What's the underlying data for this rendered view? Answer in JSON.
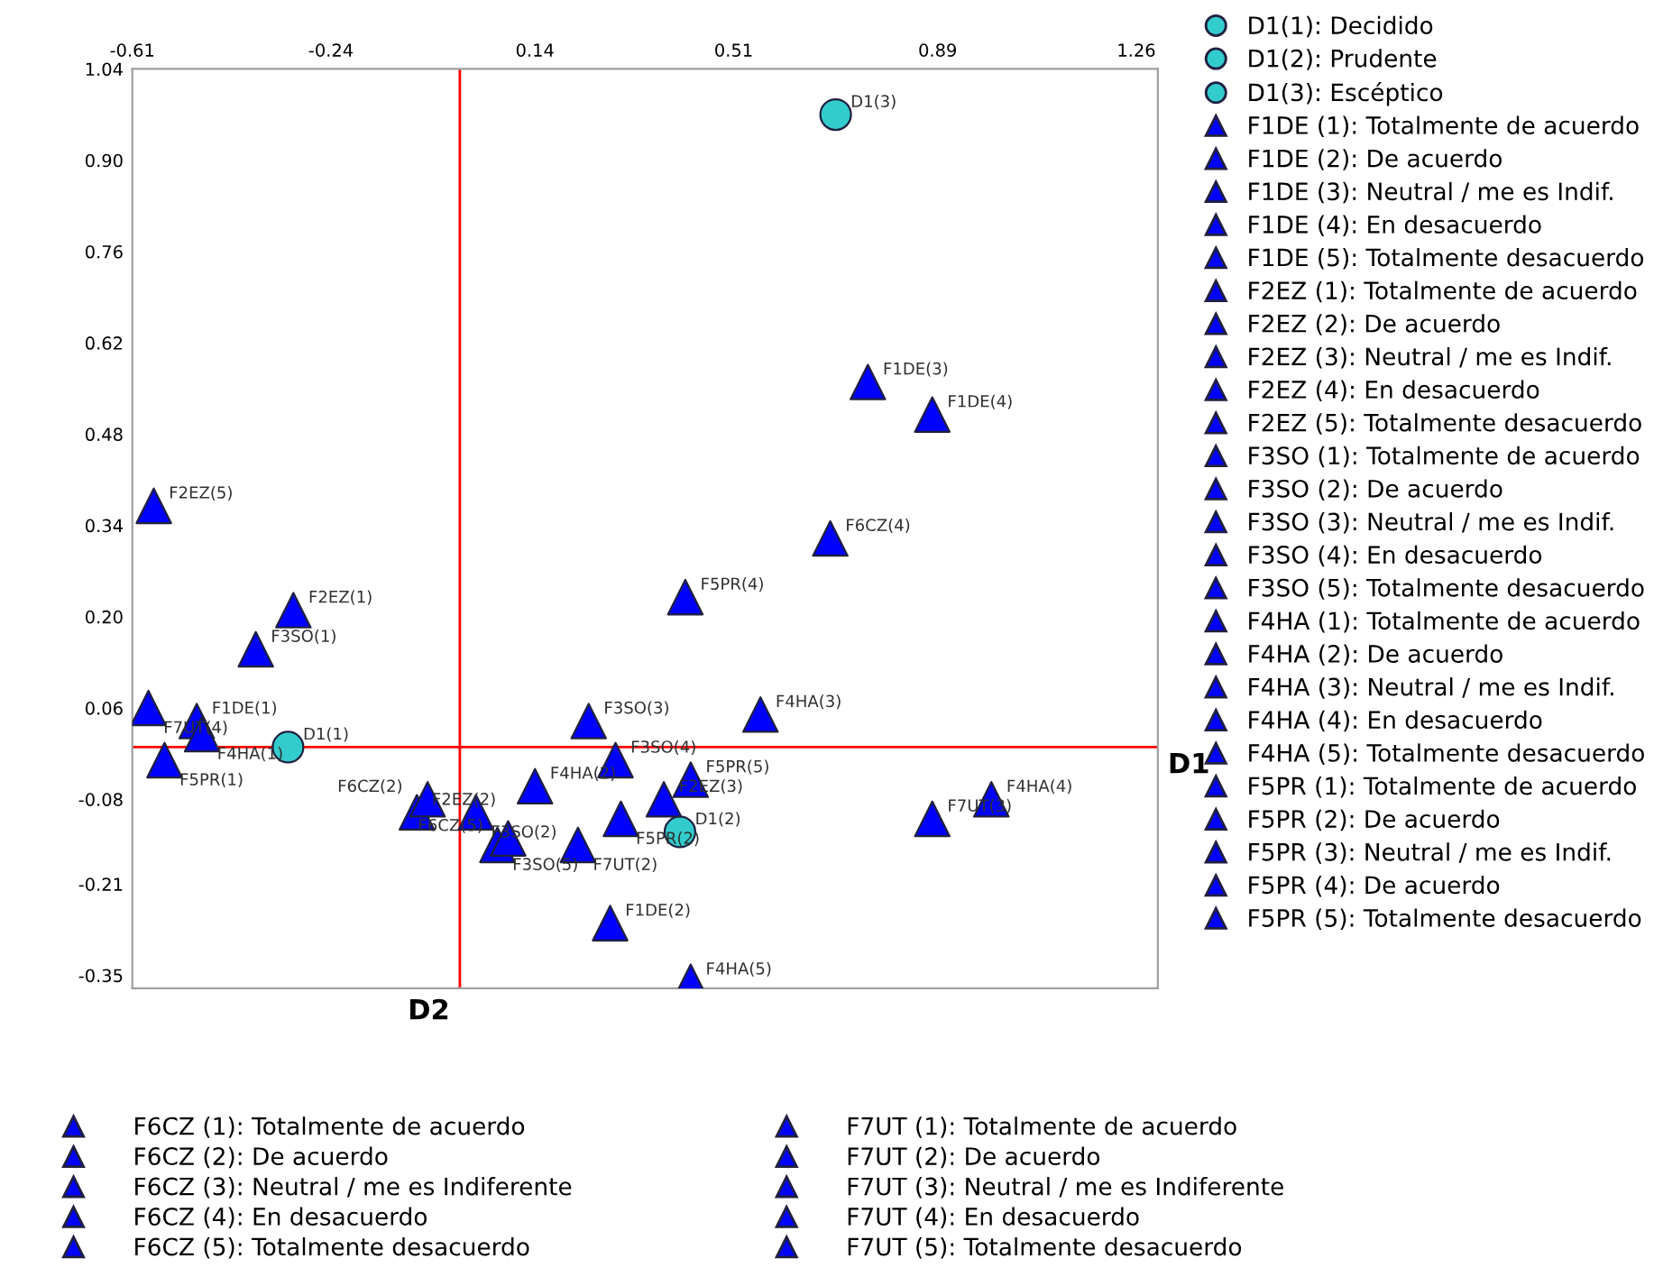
{
  "chart_data": {
    "type": "scatter",
    "xlim": [
      -0.61,
      1.3
    ],
    "ylim": [
      -0.37,
      1.04
    ],
    "xticks": [
      -0.61,
      -0.24,
      0.14,
      0.51,
      0.89,
      1.26
    ],
    "yticks": [
      -0.35,
      -0.21,
      -0.08,
      0.06,
      {
        "value": 0.2,
        "label": "0.20"
      },
      0.34,
      0.48,
      0.62,
      0.76,
      {
        "value": 0.9,
        "label": "0.90"
      },
      1.04
    ],
    "grid": false,
    "legend": "right",
    "ref_lines": [
      {
        "axis": "x",
        "value": 0,
        "label": "D2",
        "color": "#ff0000"
      },
      {
        "axis": "y",
        "value": 0,
        "label": "D1",
        "color": "#ff0000"
      }
    ],
    "series": [
      {
        "name": "D1(1): Decidido",
        "color": "#33cccc",
        "marker": "circle",
        "x": [
          -0.32
        ],
        "values": [
          0.0
        ]
      },
      {
        "name": "D1(2): Prudente",
        "color": "#33cccc",
        "marker": "circle",
        "x": [
          0.41
        ],
        "values": [
          -0.13
        ]
      },
      {
        "name": "D1(3): Escéptico",
        "color": "#33cccc",
        "marker": "circle",
        "x": [
          0.7
        ],
        "values": [
          0.97
        ]
      },
      {
        "name": "F1DE (1): Totalmente de acuerdo",
        "color": "#0000ff",
        "marker": "triangle",
        "x": [
          -0.49
        ],
        "values": [
          0.04
        ]
      },
      {
        "name": "F1DE (2): De acuerdo",
        "color": "#0000ff",
        "marker": "triangle",
        "x": [
          0.28
        ],
        "values": [
          -0.27
        ]
      },
      {
        "name": "F1DE (3): Neutral / me es Indif.",
        "color": "#0000ff",
        "marker": "triangle",
        "x": [
          0.76
        ],
        "values": [
          0.56
        ]
      },
      {
        "name": "F1DE (4): En desacuerdo",
        "color": "#0000ff",
        "marker": "triangle",
        "x": [
          0.88
        ],
        "values": [
          0.51
        ]
      },
      {
        "name": "F1DE (5): Totalmente desacuerdo",
        "color": "#0000ff",
        "marker": "triangle",
        "x": [
          null
        ],
        "values": [
          null
        ]
      },
      {
        "name": "F2EZ (1): Totalmente de acuerdo",
        "color": "#0000ff",
        "marker": "triangle",
        "x": [
          -0.31
        ],
        "values": [
          0.21
        ]
      },
      {
        "name": "F2EZ (2): De acuerdo",
        "color": "#0000ff",
        "marker": "triangle",
        "x": [
          -0.08
        ],
        "values": [
          -0.1
        ]
      },
      {
        "name": "F2EZ (3): Neutral / me es Indif.",
        "color": "#0000ff",
        "marker": "triangle",
        "x": [
          0.38
        ],
        "values": [
          -0.08
        ]
      },
      {
        "name": "F2EZ (4): En desacuerdo",
        "color": "#0000ff",
        "marker": "triangle",
        "x": [
          null
        ],
        "values": [
          null
        ]
      },
      {
        "name": "F2EZ (5): Totalmente desacuerdo",
        "color": "#0000ff",
        "marker": "triangle",
        "x": [
          -0.57
        ],
        "values": [
          0.37
        ]
      },
      {
        "name": "F3SO (1): Totalmente de acuerdo",
        "color": "#0000ff",
        "marker": "triangle",
        "x": [
          -0.38
        ],
        "values": [
          0.15
        ]
      },
      {
        "name": "F3SO (2): De acuerdo",
        "color": "#0000ff",
        "marker": "triangle",
        "x": [
          0.03
        ],
        "values": [
          -0.1
        ]
      },
      {
        "name": "F3SO (3): Neutral / me es Indif.",
        "color": "#0000ff",
        "marker": "triangle",
        "x": [
          0.24
        ],
        "values": [
          0.04
        ]
      },
      {
        "name": "F3SO (4): En desacuerdo",
        "color": "#0000ff",
        "marker": "triangle",
        "x": [
          0.29
        ],
        "values": [
          -0.02
        ]
      },
      {
        "name": "F3SO (5): Totalmente desacuerdo",
        "color": "#0000ff",
        "marker": "triangle",
        "x": [
          0.07
        ],
        "values": [
          -0.15
        ]
      },
      {
        "name": "F4HA (1): Totalmente de acuerdo",
        "color": "#0000ff",
        "marker": "triangle",
        "x": [
          -0.48
        ],
        "values": [
          0.02
        ]
      },
      {
        "name": "F4HA (2): De acuerdo",
        "color": "#0000ff",
        "marker": "triangle",
        "x": [
          0.14
        ],
        "values": [
          -0.06
        ]
      },
      {
        "name": "F4HA (3): Neutral / me es Indif.",
        "color": "#0000ff",
        "marker": "triangle",
        "x": [
          0.56
        ],
        "values": [
          0.05
        ]
      },
      {
        "name": "F4HA (4): En desacuerdo",
        "color": "#0000ff",
        "marker": "triangle",
        "x": [
          0.99
        ],
        "values": [
          -0.08
        ]
      },
      {
        "name": "F4HA (5): Totalmente desacuerdo",
        "color": "#0000ff",
        "marker": "triangle",
        "x": [
          0.43
        ],
        "values": [
          -0.36
        ]
      },
      {
        "name": "F5PR (1): Totalmente de acuerdo",
        "color": "#0000ff",
        "marker": "triangle",
        "x": [
          -0.55
        ],
        "values": [
          -0.02
        ]
      },
      {
        "name": "F5PR (2): De acuerdo",
        "color": "#0000ff",
        "marker": "triangle",
        "x": [
          0.3
        ],
        "values": [
          -0.11
        ]
      },
      {
        "name": "F5PR (3): Neutral / me es Indif.",
        "color": "#0000ff",
        "marker": "triangle",
        "x": [
          null
        ],
        "values": [
          null
        ]
      },
      {
        "name": "F5PR (4): De acuerdo",
        "color": "#0000ff",
        "marker": "triangle",
        "x": [
          0.42
        ],
        "values": [
          0.23
        ]
      },
      {
        "name": "F5PR (5): Totalmente desacuerdo",
        "color": "#0000ff",
        "marker": "triangle",
        "x": [
          0.43
        ],
        "values": [
          -0.05
        ]
      },
      {
        "name": "F6CZ (1): Totalmente de acuerdo",
        "color": "#0000ff",
        "marker": "triangle",
        "x": [
          null
        ],
        "values": [
          null
        ]
      },
      {
        "name": "F6CZ (2): De acuerdo",
        "color": "#0000ff",
        "marker": "triangle",
        "x": [
          -0.06
        ],
        "values": [
          -0.08
        ]
      },
      {
        "name": "F6CZ (3): Neutral / me es Indiferente",
        "color": "#0000ff",
        "marker": "triangle",
        "x": [
          null
        ],
        "values": [
          null
        ]
      },
      {
        "name": "F6CZ (4): En desacuerdo",
        "color": "#0000ff",
        "marker": "triangle",
        "x": [
          0.69
        ],
        "values": [
          0.32
        ]
      },
      {
        "name": "F6CZ (5): Totalmente desacuerdo",
        "color": "#0000ff",
        "marker": "triangle",
        "x": [
          0.09
        ],
        "values": [
          -0.14
        ]
      },
      {
        "name": "F7UT (1): Totalmente de acuerdo",
        "color": "#0000ff",
        "marker": "triangle",
        "x": [
          null
        ],
        "values": [
          null
        ]
      },
      {
        "name": "F7UT (2): De acuerdo",
        "color": "#0000ff",
        "marker": "triangle",
        "x": [
          0.22
        ],
        "values": [
          -0.15
        ]
      },
      {
        "name": "F7UT (3): Neutral / me es Indiferente",
        "color": "#0000ff",
        "marker": "triangle",
        "x": [
          0.88
        ],
        "values": [
          -0.11
        ]
      },
      {
        "name": "F7UT (4): En desacuerdo",
        "color": "#0000ff",
        "marker": "triangle",
        "x": [
          -0.58
        ],
        "values": [
          0.06
        ]
      },
      {
        "name": "F7UT (5): Totalmente desacuerdo",
        "color": "#0000ff",
        "marker": "triangle",
        "x": [
          null
        ],
        "values": [
          null
        ]
      }
    ],
    "annotations": [
      {
        "text": "D1(1)",
        "x": -0.32,
        "y": 0.0
      },
      {
        "text": "D1(2)",
        "x": 0.41,
        "y": -0.13
      },
      {
        "text": "D1(3)",
        "x": 0.7,
        "y": 0.97
      },
      {
        "text": "F1DE(1)",
        "x": -0.49,
        "y": 0.04
      },
      {
        "text": "F1DE(2)",
        "x": 0.28,
        "y": -0.27
      },
      {
        "text": "F1DE(3)",
        "x": 0.76,
        "y": 0.56
      },
      {
        "text": "F1DE(4)",
        "x": 0.88,
        "y": 0.51
      },
      {
        "text": "F2EZ(1)",
        "x": -0.31,
        "y": 0.21
      },
      {
        "text": "F2EZ(2)",
        "x": -0.08,
        "y": -0.1
      },
      {
        "text": "F2EZ(3)",
        "x": 0.38,
        "y": -0.08
      },
      {
        "text": "F2EZ(5)",
        "x": -0.57,
        "y": 0.37
      },
      {
        "text": "F3SO(1)",
        "x": -0.38,
        "y": 0.15
      },
      {
        "text": "F3SO(2)",
        "x": 0.03,
        "y": -0.1
      },
      {
        "text": "F3SO(3)",
        "x": 0.24,
        "y": 0.04
      },
      {
        "text": "F3SO(4)",
        "x": 0.29,
        "y": -0.02
      },
      {
        "text": "F3SO(5)",
        "x": 0.07,
        "y": -0.15
      },
      {
        "text": "F4HA(1)",
        "x": -0.48,
        "y": 0.02
      },
      {
        "text": "F4HA(2)",
        "x": 0.14,
        "y": -0.06
      },
      {
        "text": "F4HA(3)",
        "x": 0.56,
        "y": 0.05
      },
      {
        "text": "F4HA(4)",
        "x": 0.99,
        "y": -0.08
      },
      {
        "text": "F4HA(5)",
        "x": 0.43,
        "y": -0.36
      },
      {
        "text": "F5PR(1)",
        "x": -0.55,
        "y": -0.02
      },
      {
        "text": "F5PR(2)",
        "x": 0.3,
        "y": -0.11
      },
      {
        "text": "F5PR(4)",
        "x": 0.42,
        "y": 0.23
      },
      {
        "text": "F5PR(5)",
        "x": 0.43,
        "y": -0.05
      },
      {
        "text": "F6CZ(2)",
        "x": -0.06,
        "y": -0.08
      },
      {
        "text": "F6CZ(4)",
        "x": 0.69,
        "y": 0.32
      },
      {
        "text": "F6CZ(5)",
        "x": 0.09,
        "y": -0.14
      },
      {
        "text": "F7UT(2)",
        "x": 0.22,
        "y": -0.15
      },
      {
        "text": "F7UT(3)",
        "x": 0.88,
        "y": -0.11
      },
      {
        "text": "F7UT(4)",
        "x": -0.58,
        "y": 0.06
      }
    ]
  }
}
